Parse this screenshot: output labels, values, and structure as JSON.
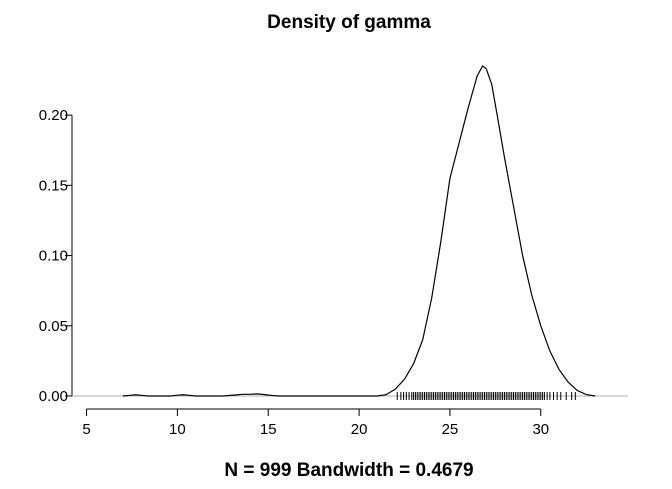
{
  "chart_data": {
    "type": "line",
    "title": "Density of gamma",
    "xlabel": "N = 999   Bandwidth = 0.4679",
    "ylabel": "",
    "xlim": [
      4.2,
      34.8
    ],
    "ylim": [
      0,
      0.235
    ],
    "x_ticks": [
      "5",
      "10",
      "15",
      "20",
      "25",
      "30"
    ],
    "y_ticks": [
      "0.00",
      "0.05",
      "0.10",
      "0.15",
      "0.20"
    ],
    "grid": false,
    "legend": "none",
    "baseline": 0,
    "series": [
      {
        "x": [
          7.0,
          7.4,
          7.7,
          8.0,
          8.4,
          8.8,
          9.6,
          10.0,
          10.3,
          10.6,
          11.0,
          11.5,
          12.5,
          13.1,
          13.6,
          14.0,
          14.4,
          14.8,
          15.2,
          15.6,
          16.0,
          17.0,
          18.5,
          20.0,
          21.0,
          21.5,
          22.0,
          22.5,
          23.0,
          23.5,
          24.0,
          24.5,
          25.0,
          25.5,
          26.0,
          26.5,
          26.8,
          27.0,
          27.3,
          27.6,
          28.0,
          28.5,
          29.0,
          29.5,
          30.0,
          30.5,
          31.0,
          31.5,
          32.0,
          32.5,
          33.0
        ],
        "y": [
          0.0,
          0.0005,
          0.0009,
          0.0005,
          0.0,
          0.0,
          0.0,
          0.0006,
          0.0009,
          0.0006,
          0.0,
          0.0,
          0.0,
          0.0006,
          0.0012,
          0.0012,
          0.0015,
          0.001,
          0.0004,
          0.0,
          0.0,
          0.0,
          0.0,
          0.0,
          0.0,
          0.001,
          0.005,
          0.012,
          0.023,
          0.04,
          0.07,
          0.11,
          0.155,
          0.18,
          0.205,
          0.228,
          0.235,
          0.233,
          0.222,
          0.2,
          0.17,
          0.135,
          0.1,
          0.072,
          0.05,
          0.032,
          0.019,
          0.01,
          0.004,
          0.001,
          0.0
        ]
      }
    ],
    "rug": [
      22.1,
      22.3,
      22.45,
      22.6,
      22.75,
      22.9,
      23.0,
      23.1,
      23.2,
      23.3,
      23.4,
      23.5,
      23.6,
      23.7,
      23.8,
      23.9,
      24.0,
      24.1,
      24.2,
      24.3,
      24.4,
      24.5,
      24.6,
      24.7,
      24.8,
      24.9,
      25.0,
      25.1,
      25.2,
      25.3,
      25.4,
      25.5,
      25.6,
      25.7,
      25.8,
      25.9,
      26.0,
      26.1,
      26.2,
      26.3,
      26.4,
      26.5,
      26.6,
      26.7,
      26.8,
      26.9,
      27.0,
      27.1,
      27.2,
      27.3,
      27.4,
      27.5,
      27.6,
      27.7,
      27.8,
      27.9,
      28.0,
      28.1,
      28.2,
      28.3,
      28.4,
      28.5,
      28.6,
      28.7,
      28.8,
      28.9,
      29.0,
      29.1,
      29.2,
      29.3,
      29.4,
      29.5,
      29.6,
      29.7,
      29.8,
      29.9,
      30.0,
      30.1,
      30.2,
      30.35,
      30.5,
      30.7,
      30.9,
      31.1,
      31.4,
      31.7,
      31.9
    ]
  }
}
